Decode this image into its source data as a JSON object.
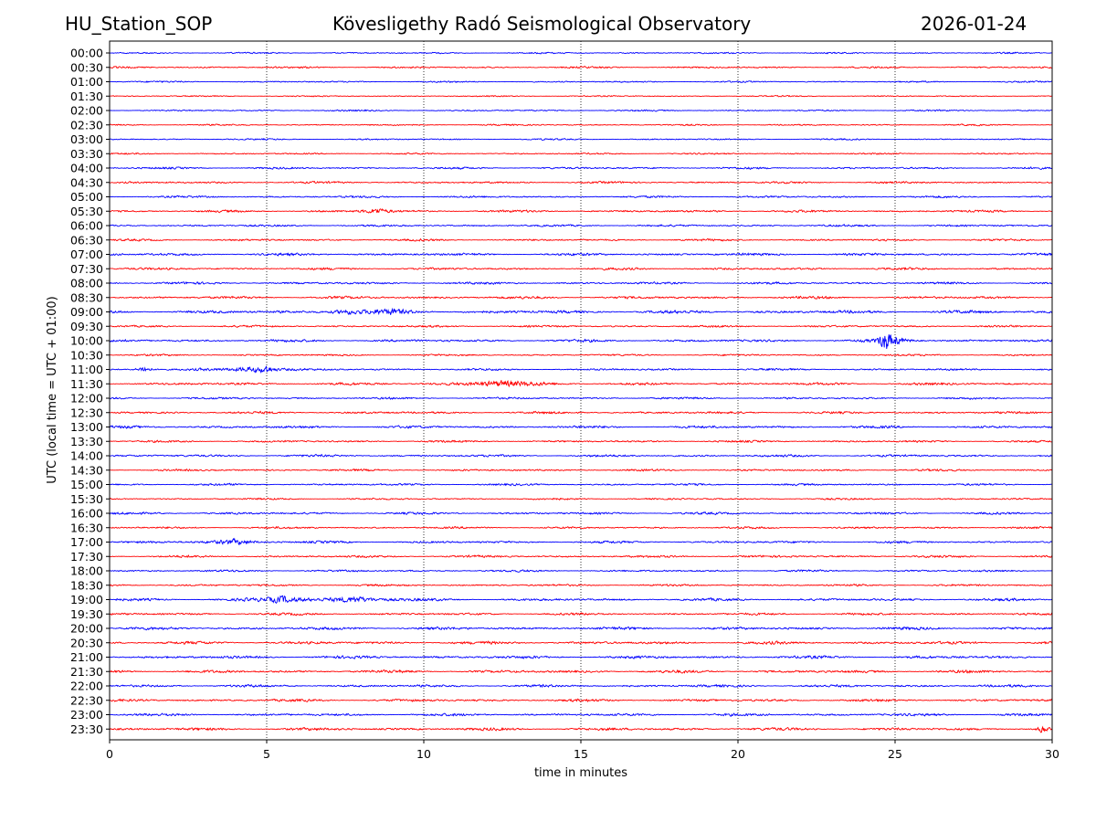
{
  "header": {
    "station": "HU_Station_SOP",
    "observatory": "Kövesligethy Radó Seismological Observatory",
    "date": "2026-01-24"
  },
  "chart_data": {
    "type": "line",
    "title": "Kövesligethy Radó Seismological Observatory",
    "xlabel": "time in minutes",
    "ylabel": "UTC (local time = UTC + 01:00)",
    "xlim": [
      0,
      30
    ],
    "xticks": [
      "0",
      "5",
      "10",
      "15",
      "20",
      "25",
      "30"
    ],
    "grid": "vertical dotted at every 5 minutes",
    "row_labels": [
      "00:00",
      "00:30",
      "01:00",
      "01:30",
      "02:00",
      "02:30",
      "03:00",
      "03:30",
      "04:00",
      "04:30",
      "05:00",
      "05:30",
      "06:00",
      "06:30",
      "07:00",
      "07:30",
      "08:00",
      "08:30",
      "09:00",
      "09:30",
      "10:00",
      "10:30",
      "11:00",
      "11:30",
      "12:00",
      "12:30",
      "13:00",
      "13:30",
      "14:00",
      "14:30",
      "15:00",
      "15:30",
      "16:00",
      "16:30",
      "17:00",
      "17:30",
      "18:00",
      "18:30",
      "19:00",
      "19:30",
      "20:00",
      "20:30",
      "21:00",
      "21:30",
      "22:00",
      "22:30",
      "23:00",
      "23:30"
    ],
    "series_colors": [
      "#0000ff",
      "#ff0000"
    ],
    "noise_amplitude": [
      0.6,
      0.7,
      0.6,
      0.5,
      0.6,
      0.6,
      0.6,
      0.6,
      0.8,
      0.8,
      0.8,
      0.9,
      0.8,
      0.8,
      1.0,
      0.9,
      0.9,
      1.0,
      1.2,
      0.8,
      1.0,
      0.7,
      0.8,
      1.0,
      0.8,
      0.9,
      1.0,
      0.8,
      0.9,
      0.8,
      0.8,
      0.7,
      0.9,
      0.8,
      0.9,
      0.9,
      0.8,
      0.8,
      1.0,
      0.9,
      1.1,
      1.1,
      1.1,
      1.1,
      1.0,
      1.0,
      1.0,
      1.1
    ],
    "events": [
      {
        "row": "05:30",
        "minute": 8.5,
        "amplitude": 2.0,
        "width": 0.3
      },
      {
        "row": "09:00",
        "minute": 7.5,
        "amplitude": 1.6,
        "width": 0.5
      },
      {
        "row": "09:00",
        "minute": 9.0,
        "amplitude": 1.5,
        "width": 0.5
      },
      {
        "row": "10:00",
        "minute": 24.7,
        "amplitude": 8.0,
        "width": 0.12
      },
      {
        "row": "10:00",
        "minute": 25.0,
        "amplitude": 3.0,
        "width": 0.3
      },
      {
        "row": "11:00",
        "minute": 1.1,
        "amplitude": 2.5,
        "width": 0.15
      },
      {
        "row": "11:00",
        "minute": 4.5,
        "amplitude": 2.2,
        "width": 0.6
      },
      {
        "row": "11:00",
        "minute": 5.0,
        "amplitude": 3.0,
        "width": 0.12
      },
      {
        "row": "11:30",
        "minute": 12.5,
        "amplitude": 2.0,
        "width": 0.9
      },
      {
        "row": "17:00",
        "minute": 4.0,
        "amplitude": 1.8,
        "width": 0.6
      },
      {
        "row": "19:00",
        "minute": 5.5,
        "amplitude": 2.5,
        "width": 0.5
      },
      {
        "row": "19:00",
        "minute": 7.8,
        "amplitude": 2.2,
        "width": 0.7
      },
      {
        "row": "23:30",
        "minute": 29.7,
        "amplitude": 3.0,
        "width": 0.1
      }
    ]
  }
}
